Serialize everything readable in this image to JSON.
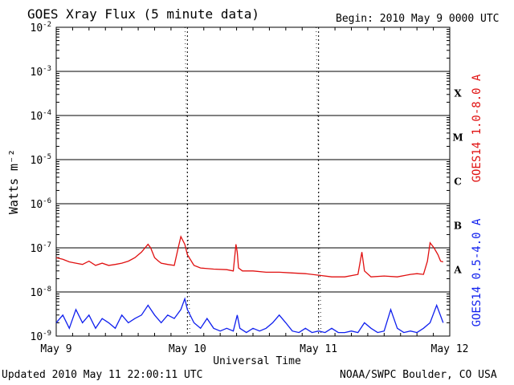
{
  "header": {
    "title": "GOES Xray Flux (5 minute data)",
    "begin": "Begin:  2010 May 9 0000 UTC"
  },
  "footer": {
    "updated": "Updated 2010 May 11 22:00:11 UTC",
    "credit": "NOAA/SWPC Boulder, CO USA"
  },
  "chart_data": {
    "type": "line",
    "title": "GOES Xray Flux (5 minute data)",
    "xlabel": "Universal Time",
    "ylabel": "Watts m⁻²",
    "y_scale": "log",
    "ylim": [
      1e-09,
      0.01
    ],
    "y_ticks": [
      {
        "base": "10",
        "exp": "-9"
      },
      {
        "base": "10",
        "exp": "-8"
      },
      {
        "base": "10",
        "exp": "-7"
      },
      {
        "base": "10",
        "exp": "-6"
      },
      {
        "base": "10",
        "exp": "-5"
      },
      {
        "base": "10",
        "exp": "-4"
      },
      {
        "base": "10",
        "exp": "-3"
      },
      {
        "base": "10",
        "exp": "-2"
      }
    ],
    "x_tick_labels": [
      "May 9",
      "May 10",
      "May 11",
      "May 12"
    ],
    "xlim_days": [
      0,
      3
    ],
    "flare_classes": [
      {
        "label": "A",
        "min": 1e-08
      },
      {
        "label": "B",
        "min": 1e-07
      },
      {
        "label": "C",
        "min": 1e-06
      },
      {
        "label": "M",
        "min": 1e-05
      },
      {
        "label": "X",
        "min": 0.0001
      }
    ],
    "grid": true,
    "series": [
      {
        "name": "GOES14 1.0-8.0 A",
        "color": "#e01010",
        "x_days": [
          0.0,
          0.05,
          0.1,
          0.15,
          0.2,
          0.25,
          0.3,
          0.35,
          0.4,
          0.45,
          0.5,
          0.55,
          0.6,
          0.65,
          0.7,
          0.72,
          0.75,
          0.78,
          0.8,
          0.85,
          0.9,
          0.93,
          0.95,
          0.98,
          1.0,
          1.05,
          1.1,
          1.2,
          1.3,
          1.35,
          1.37,
          1.38,
          1.39,
          1.42,
          1.5,
          1.6,
          1.7,
          1.8,
          1.9,
          2.0,
          2.1,
          2.2,
          2.3,
          2.33,
          2.35,
          2.4,
          2.5,
          2.6,
          2.7,
          2.75,
          2.8,
          2.83,
          2.85,
          2.88,
          2.91,
          2.93,
          2.95
        ],
        "values": [
          6e-08,
          5.5e-08,
          4.8e-08,
          4.5e-08,
          4.2e-08,
          5e-08,
          4e-08,
          4.5e-08,
          4e-08,
          4.2e-08,
          4.5e-08,
          5e-08,
          6e-08,
          8e-08,
          1.2e-07,
          1e-07,
          6e-08,
          5e-08,
          4.5e-08,
          4.2e-08,
          4e-08,
          1e-07,
          1.8e-07,
          1.2e-07,
          7e-08,
          4e-08,
          3.5e-08,
          3.3e-08,
          3.2e-08,
          3e-08,
          1.2e-07,
          8e-08,
          3.5e-08,
          3e-08,
          3e-08,
          2.8e-08,
          2.8e-08,
          2.7e-08,
          2.6e-08,
          2.4e-08,
          2.2e-08,
          2.2e-08,
          2.5e-08,
          8e-08,
          3e-08,
          2.2e-08,
          2.3e-08,
          2.2e-08,
          2.5e-08,
          2.6e-08,
          2.5e-08,
          5e-08,
          1.3e-07,
          1e-07,
          7e-08,
          5e-08,
          4.8e-08
        ]
      },
      {
        "name": "GOES14 0.5-4.0 A",
        "color": "#1020ee",
        "x_days": [
          0.0,
          0.05,
          0.1,
          0.15,
          0.2,
          0.25,
          0.3,
          0.35,
          0.4,
          0.45,
          0.5,
          0.55,
          0.6,
          0.65,
          0.7,
          0.75,
          0.8,
          0.85,
          0.9,
          0.95,
          0.98,
          1.0,
          1.05,
          1.1,
          1.15,
          1.2,
          1.25,
          1.3,
          1.35,
          1.38,
          1.4,
          1.45,
          1.5,
          1.55,
          1.6,
          1.65,
          1.7,
          1.75,
          1.8,
          1.85,
          1.9,
          1.95,
          2.0,
          2.05,
          2.1,
          2.15,
          2.2,
          2.25,
          2.3,
          2.35,
          2.4,
          2.45,
          2.5,
          2.55,
          2.6,
          2.65,
          2.7,
          2.75,
          2.8,
          2.85,
          2.9,
          2.95
        ],
        "values": [
          2e-09,
          3e-09,
          1.5e-09,
          4e-09,
          2e-09,
          3e-09,
          1.5e-09,
          2.5e-09,
          2e-09,
          1.5e-09,
          3e-09,
          2e-09,
          2.5e-09,
          3e-09,
          5e-09,
          3e-09,
          2e-09,
          3e-09,
          2.5e-09,
          4e-09,
          7e-09,
          4e-09,
          2e-09,
          1.5e-09,
          2.5e-09,
          1.5e-09,
          1.3e-09,
          1.5e-09,
          1.3e-09,
          3e-09,
          1.5e-09,
          1.2e-09,
          1.5e-09,
          1.3e-09,
          1.5e-09,
          2e-09,
          3e-09,
          2e-09,
          1.3e-09,
          1.2e-09,
          1.5e-09,
          1.2e-09,
          1.3e-09,
          1.2e-09,
          1.5e-09,
          1.2e-09,
          1.2e-09,
          1.3e-09,
          1.2e-09,
          2e-09,
          1.5e-09,
          1.2e-09,
          1.3e-09,
          4e-09,
          1.5e-09,
          1.2e-09,
          1.3e-09,
          1.2e-09,
          1.5e-09,
          2e-09,
          5e-09,
          2e-09
        ]
      }
    ]
  }
}
